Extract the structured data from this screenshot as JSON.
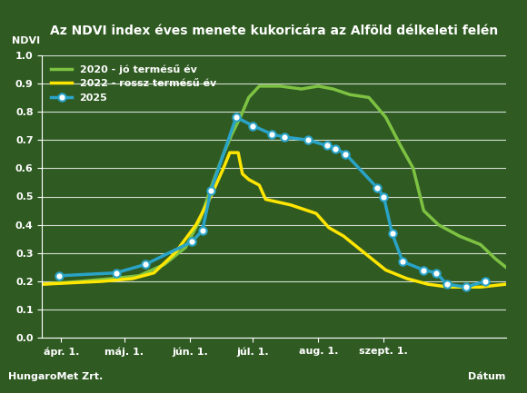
{
  "chart_data": {
    "type": "line",
    "title": "Az NDVI index éves menete kukoricára az Alföld délkeleti felén",
    "x_label": "Dátum",
    "y_label": "NDVI",
    "source": "HungaroMet Zrt.",
    "xlim": [
      82,
      302
    ],
    "xticks": [
      {
        "value": 91,
        "label": "ápr. 1."
      },
      {
        "value": 121,
        "label": "máj. 1."
      },
      {
        "value": 152,
        "label": "jún. 1."
      },
      {
        "value": 182,
        "label": "júl. 1."
      },
      {
        "value": 213,
        "label": "aug. 1."
      },
      {
        "value": 244,
        "label": "szept. 1."
      }
    ],
    "ylim": [
      0.0,
      1.0
    ],
    "yticks": [
      0.0,
      0.1,
      0.2,
      0.3,
      0.4,
      0.5,
      0.6,
      0.7,
      0.8,
      0.9,
      1.0
    ],
    "grid": true,
    "legend": "upper left",
    "series": [
      {
        "name": "2020 - jó termésű év",
        "color": "#7dc242",
        "line_style": "solid",
        "x": [
          82,
          100,
          115,
          128,
          140,
          150,
          157,
          163,
          168,
          172,
          176,
          180,
          185,
          195,
          205,
          213,
          220,
          228,
          237,
          245,
          252,
          258,
          263,
          270,
          280,
          290,
          297,
          302
        ],
        "values": [
          0.19,
          0.2,
          0.21,
          0.22,
          0.26,
          0.32,
          0.42,
          0.55,
          0.65,
          0.72,
          0.78,
          0.85,
          0.89,
          0.89,
          0.88,
          0.89,
          0.88,
          0.86,
          0.85,
          0.78,
          0.68,
          0.6,
          0.45,
          0.4,
          0.36,
          0.33,
          0.28,
          0.25
        ]
      },
      {
        "name": "2022 - rossz termésű év",
        "color": "#ffe600",
        "line_style": "solid",
        "x": [
          82,
          110,
          125,
          135,
          145,
          155,
          162,
          168,
          171,
          175,
          177,
          180,
          185,
          188,
          200,
          212,
          218,
          225,
          235,
          245,
          255,
          265,
          275,
          290,
          302
        ],
        "values": [
          0.19,
          0.2,
          0.21,
          0.23,
          0.3,
          0.4,
          0.5,
          0.6,
          0.655,
          0.655,
          0.58,
          0.56,
          0.54,
          0.49,
          0.47,
          0.44,
          0.39,
          0.36,
          0.3,
          0.24,
          0.21,
          0.19,
          0.18,
          0.18,
          0.19
        ]
      },
      {
        "name": "2025",
        "color": "#29a3c8",
        "line_style": "solid",
        "marker": "o",
        "x": [
          90,
          117,
          131,
          153,
          158,
          162,
          174,
          182,
          191,
          197,
          208,
          217,
          221,
          226,
          241,
          244,
          248,
          253,
          263,
          269,
          274,
          283,
          292
        ],
        "values": [
          0.22,
          0.23,
          0.26,
          0.34,
          0.38,
          0.52,
          0.78,
          0.75,
          0.72,
          0.71,
          0.7,
          0.68,
          0.67,
          0.65,
          0.53,
          0.5,
          0.37,
          0.27,
          0.24,
          0.23,
          0.19,
          0.18,
          0.2
        ]
      }
    ]
  }
}
